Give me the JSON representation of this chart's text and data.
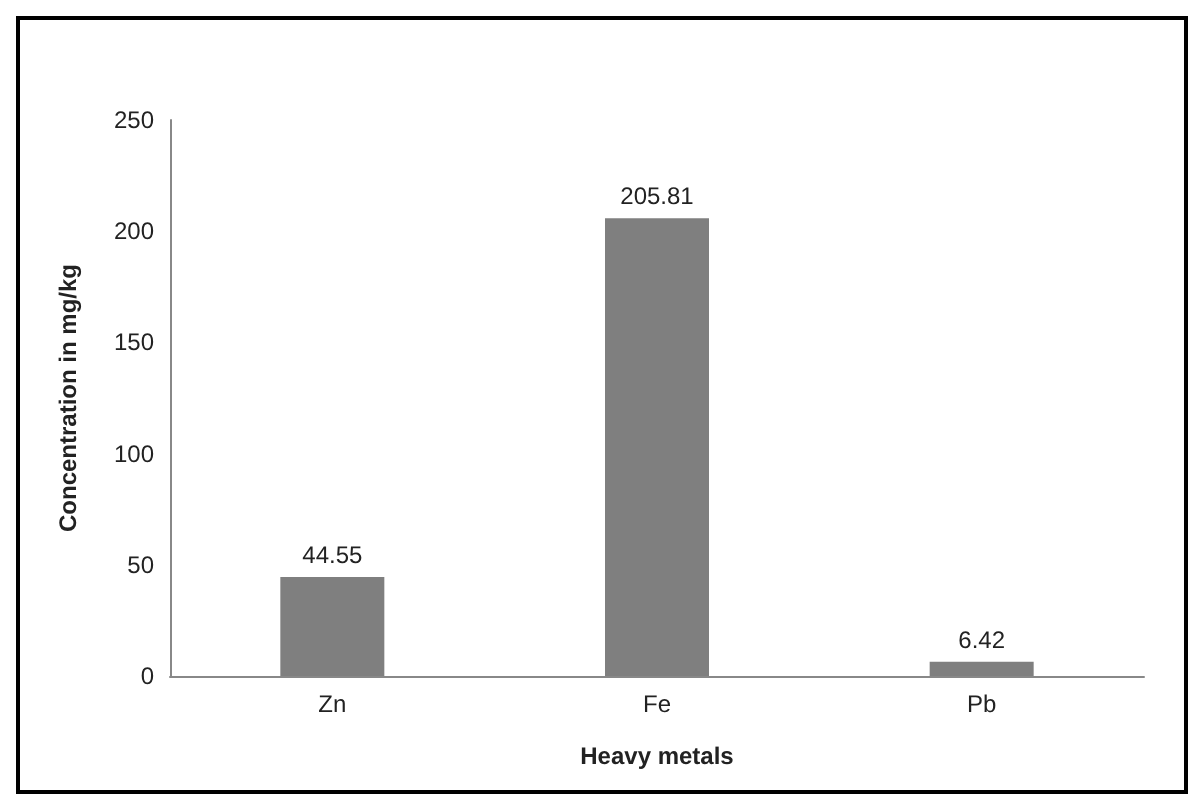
{
  "chart_data": {
    "type": "bar",
    "xlabel": "Heavy metals",
    "ylabel": "Concentration in mg/kg",
    "categories": [
      "Zn",
      "Fe",
      "Pb"
    ],
    "values": [
      44.55,
      205.81,
      6.42
    ],
    "color": "#7f7f7f",
    "ylim": [
      0,
      250
    ],
    "yticks": [
      0,
      50,
      100,
      150,
      200,
      250
    ],
    "data_labels": true
  }
}
